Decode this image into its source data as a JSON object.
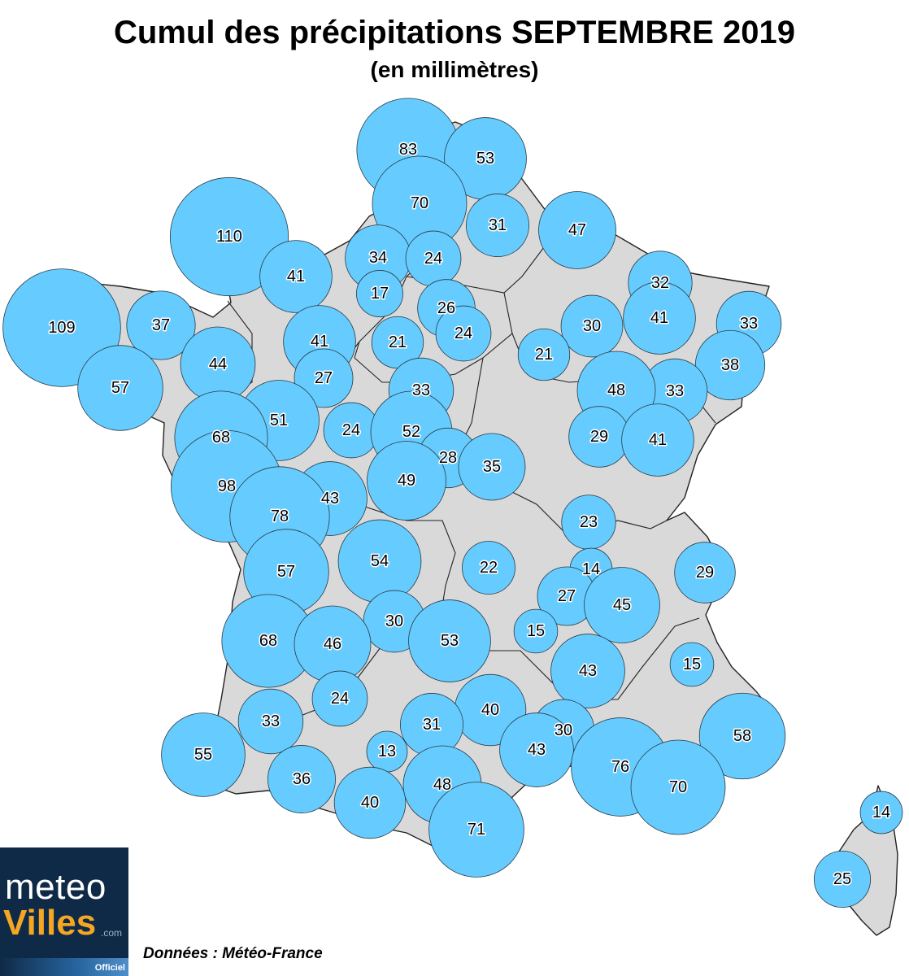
{
  "title": "Cumul des précipitations SEPTEMBRE 2019",
  "subtitle": "(en millimètres)",
  "source": "Données : Météo-France",
  "logo": {
    "line1": "meteo",
    "line2": "Villes",
    "suffix": ".com",
    "tag": "Officiel"
  },
  "colors": {
    "bubble": "#66ccff",
    "land": "#d9d9d9",
    "logo_bg": "#0f2a47",
    "logo_accent": "#f5a623"
  },
  "icons": {
    "logo": "meteovilles-logo"
  },
  "stations": [
    {
      "value": 83
    },
    {
      "value": 53
    },
    {
      "value": 70
    },
    {
      "value": 110
    },
    {
      "value": 31
    },
    {
      "value": 47
    },
    {
      "value": 34
    },
    {
      "value": 41
    },
    {
      "value": 24
    },
    {
      "value": 17
    },
    {
      "value": 32
    },
    {
      "value": 109
    },
    {
      "value": 37
    },
    {
      "value": 26
    },
    {
      "value": 41
    },
    {
      "value": 33
    },
    {
      "value": 41
    },
    {
      "value": 30
    },
    {
      "value": 24
    },
    {
      "value": 21
    },
    {
      "value": 44
    },
    {
      "value": 21
    },
    {
      "value": 38
    },
    {
      "value": 27
    },
    {
      "value": 57
    },
    {
      "value": 33
    },
    {
      "value": 48
    },
    {
      "value": 33
    },
    {
      "value": 51
    },
    {
      "value": 68
    },
    {
      "value": 24
    },
    {
      "value": 52
    },
    {
      "value": 29
    },
    {
      "value": 41
    },
    {
      "value": 28
    },
    {
      "value": 35
    },
    {
      "value": 98
    },
    {
      "value": 49
    },
    {
      "value": 43
    },
    {
      "value": 78
    },
    {
      "value": 23
    },
    {
      "value": 54
    },
    {
      "value": 57
    },
    {
      "value": 22
    },
    {
      "value": 14
    },
    {
      "value": 29
    },
    {
      "value": 27
    },
    {
      "value": 45
    },
    {
      "value": 30
    },
    {
      "value": 15
    },
    {
      "value": 68
    },
    {
      "value": 46
    },
    {
      "value": 53
    },
    {
      "value": 15
    },
    {
      "value": 43
    },
    {
      "value": 24
    },
    {
      "value": 40
    },
    {
      "value": 33
    },
    {
      "value": 31
    },
    {
      "value": 30
    },
    {
      "value": 58
    },
    {
      "value": 55
    },
    {
      "value": 13
    },
    {
      "value": 43
    },
    {
      "value": 76
    },
    {
      "value": 36
    },
    {
      "value": 48
    },
    {
      "value": 70
    },
    {
      "value": 40
    },
    {
      "value": 71
    },
    {
      "value": 14
    },
    {
      "value": 25
    }
  ]
}
